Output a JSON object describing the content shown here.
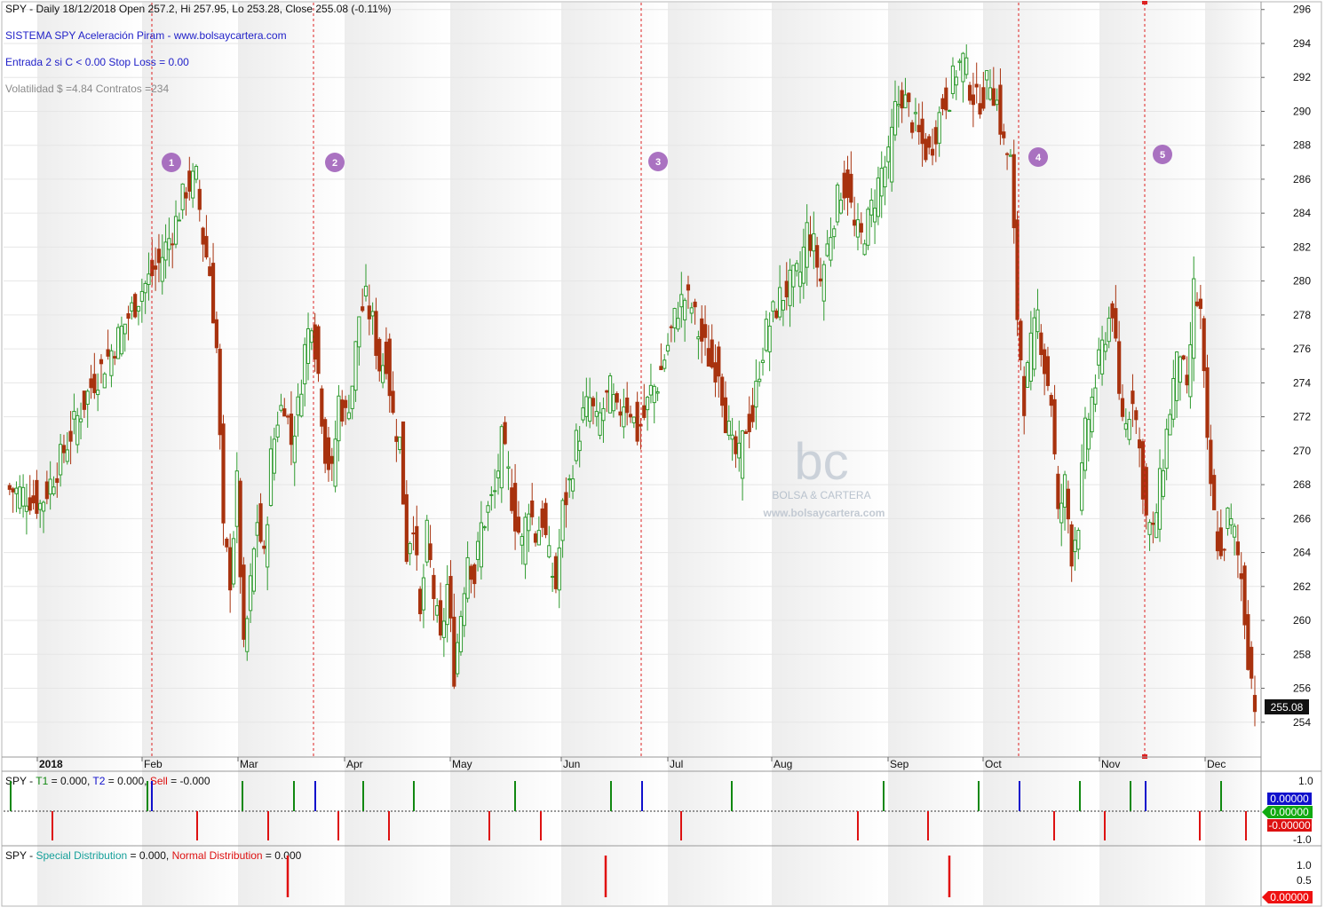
{
  "colors": {
    "up": "#2e9a2e",
    "down": "#a8320e",
    "vline": "#dd2222",
    "marker": "#9b59b6",
    "info_blue": "#1f1fc8",
    "info_gray": "#8a8a8a",
    "dist_red": "#e01010",
    "t1_green": "#118811",
    "t2_blue": "#1010cc",
    "band": "#f1f1f1"
  },
  "header": {
    "line1": "SPY - Daily 18/12/2018  Open 257.2,  Hi 257.95,  Lo 253.28,  Close 255.08 (-0.11%)",
    "line2": "SISTEMA SPY Aceleración Piram  -  www.bolsaycartera.com",
    "line3": "Entrada 2 si C < 0.00  Stop Loss = 0.00",
    "line4": "Volatilidad $ =4.84  Contratos =234"
  },
  "watermark": {
    "logo": "bc",
    "name": "BOLSA & CARTERA",
    "url": "www.bolsaycartera.com"
  },
  "markers": [
    "1",
    "2",
    "3",
    "4",
    "5"
  ],
  "last_price_label": "255.08",
  "panel2": {
    "prefix": "SPY - ",
    "t1": "T1",
    "mid1": " = 0.000, ",
    "t2": "T2",
    "mid2": " = 0.000, ",
    "sell": "Sell",
    "suffix": " = -0.000",
    "ticks": [
      "1.0",
      "-1.0"
    ],
    "badges": [
      "0.00000",
      "0.00000",
      "-0.00000"
    ]
  },
  "panel3": {
    "prefix": "SPY - ",
    "special": "Special Distribution",
    "mid": " = 0.000, ",
    "normal": "Normal Distribution",
    "suffix": " = 0.000",
    "ticks": [
      "1.0",
      "0.5"
    ],
    "badge": "0.00000"
  },
  "chart_data": {
    "type": "candlestick",
    "title": "SPY - Daily 18/12/2018",
    "x_labels": [
      "2018",
      "Feb",
      "Mar",
      "Apr",
      "May",
      "Jun",
      "Jul",
      "Aug",
      "Sep",
      "Oct",
      "Nov",
      "Dec"
    ],
    "y_ticks": [
      254,
      256,
      258,
      260,
      262,
      264,
      266,
      268,
      270,
      272,
      274,
      276,
      278,
      280,
      282,
      284,
      286,
      288,
      290,
      292,
      294,
      296
    ],
    "ylim": [
      252,
      296.3
    ],
    "signal_lines": [
      1,
      2,
      3,
      4,
      5
    ],
    "last": {
      "open": 257.2,
      "high": 257.95,
      "low": 253.28,
      "close": 255.08,
      "change_pct": -0.11
    },
    "ohlc_anchors_close": [
      [
        0,
        267.8
      ],
      [
        5,
        267.5
      ],
      [
        10,
        266.8
      ],
      [
        15,
        269.0
      ],
      [
        20,
        271.5
      ],
      [
        25,
        273.8
      ],
      [
        30,
        275.5
      ],
      [
        35,
        277.5
      ],
      [
        40,
        279.5
      ],
      [
        45,
        281.0
      ],
      [
        50,
        283.5
      ],
      [
        53,
        285.5
      ],
      [
        56,
        286.0
      ],
      [
        58,
        282.5
      ],
      [
        60,
        280.5
      ],
      [
        62,
        276.0
      ],
      [
        64,
        265.0
      ],
      [
        66,
        262.5
      ],
      [
        68,
        268.0
      ],
      [
        70,
        258.0
      ],
      [
        72,
        262.0
      ],
      [
        74,
        266.0
      ],
      [
        76,
        263.5
      ],
      [
        78,
        269.5
      ],
      [
        80,
        272.0
      ],
      [
        82,
        273.0
      ],
      [
        84,
        270.5
      ],
      [
        86,
        272.5
      ],
      [
        88,
        276.0
      ],
      [
        90,
        278.0
      ],
      [
        92,
        274.5
      ],
      [
        94,
        270.0
      ],
      [
        96,
        268.5
      ],
      [
        98,
        273.0
      ],
      [
        100,
        272.0
      ],
      [
        102,
        274.0
      ],
      [
        104,
        278.0
      ],
      [
        106,
        278.8
      ],
      [
        108,
        277.5
      ],
      [
        110,
        275.0
      ],
      [
        112,
        275.5
      ],
      [
        114,
        272.0
      ],
      [
        116,
        270.5
      ],
      [
        118,
        264.0
      ],
      [
        120,
        266.0
      ],
      [
        122,
        260.0
      ],
      [
        124,
        265.0
      ],
      [
        126,
        261.5
      ],
      [
        128,
        258.5
      ],
      [
        130,
        262.0
      ],
      [
        132,
        257.0
      ],
      [
        134,
        260.5
      ],
      [
        136,
        264.0
      ],
      [
        138,
        262.5
      ],
      [
        140,
        265.5
      ],
      [
        142,
        266.5
      ],
      [
        144,
        267.5
      ],
      [
        146,
        270.5
      ],
      [
        148,
        268.5
      ],
      [
        150,
        266.0
      ],
      [
        152,
        264.5
      ],
      [
        154,
        267.0
      ],
      [
        156,
        265.0
      ],
      [
        158,
        266.0
      ],
      [
        160,
        263.5
      ],
      [
        162,
        262.0
      ],
      [
        164,
        266.5
      ],
      [
        166,
        268.0
      ],
      [
        168,
        270.5
      ],
      [
        170,
        272.0
      ],
      [
        172,
        273.0
      ],
      [
        174,
        271.5
      ],
      [
        176,
        272.5
      ],
      [
        178,
        273.5
      ],
      [
        180,
        272.0
      ],
      [
        182,
        273.0
      ],
      [
        184,
        272.5
      ],
      [
        186,
        271.0
      ],
      [
        188,
        272.0
      ],
      [
        190,
        273.5
      ],
      [
        192,
        274.0
      ],
      [
        194,
        275.5
      ],
      [
        196,
        277.0
      ],
      [
        198,
        278.5
      ],
      [
        200,
        279.0
      ],
      [
        202,
        278.5
      ],
      [
        204,
        277.0
      ],
      [
        206,
        276.0
      ],
      [
        208,
        275.0
      ],
      [
        210,
        275.0
      ],
      [
        212,
        272.0
      ],
      [
        214,
        270.0
      ],
      [
        216,
        269.5
      ],
      [
        218,
        271.5
      ],
      [
        220,
        272.0
      ],
      [
        222,
        275.0
      ],
      [
        224,
        277.0
      ],
      [
        226,
        278.0
      ],
      [
        228,
        279.0
      ],
      [
        230,
        279.5
      ],
      [
        232,
        280.0
      ],
      [
        234,
        280.5
      ],
      [
        236,
        283.0
      ],
      [
        238,
        282.0
      ],
      [
        240,
        280.0
      ],
      [
        242,
        282.0
      ],
      [
        244,
        284.0
      ],
      [
        246,
        285.5
      ],
      [
        248,
        285.5
      ],
      [
        250,
        283.0
      ],
      [
        252,
        282.5
      ],
      [
        254,
        283.5
      ],
      [
        256,
        285.0
      ],
      [
        258,
        286.5
      ],
      [
        260,
        287.0
      ],
      [
        262,
        290.0
      ],
      [
        264,
        291.0
      ],
      [
        266,
        290.0
      ],
      [
        268,
        289.0
      ],
      [
        270,
        288.0
      ],
      [
        272,
        287.5
      ],
      [
        274,
        289.0
      ],
      [
        276,
        290.5
      ],
      [
        278,
        291.0
      ],
      [
        280,
        292.5
      ],
      [
        282,
        293.0
      ],
      [
        284,
        291.5
      ],
      [
        286,
        290.5
      ],
      [
        288,
        291.0
      ],
      [
        290,
        292.0
      ],
      [
        292,
        290.5
      ],
      [
        294,
        288.0
      ],
      [
        296,
        287.0
      ],
      [
        298,
        278.0
      ],
      [
        300,
        273.0
      ],
      [
        302,
        276.0
      ],
      [
        304,
        278.0
      ],
      [
        306,
        275.0
      ],
      [
        308,
        273.0
      ],
      [
        310,
        266.0
      ],
      [
        312,
        268.0
      ],
      [
        314,
        264.0
      ],
      [
        316,
        266.0
      ],
      [
        318,
        271.0
      ],
      [
        320,
        273.0
      ],
      [
        322,
        275.0
      ],
      [
        324,
        277.0
      ],
      [
        326,
        278.5
      ],
      [
        328,
        273.0
      ],
      [
        330,
        271.5
      ],
      [
        332,
        273.5
      ],
      [
        334,
        270.0
      ],
      [
        336,
        266.0
      ],
      [
        338,
        265.0
      ],
      [
        340,
        268.0
      ],
      [
        342,
        271.0
      ],
      [
        344,
        274.0
      ],
      [
        346,
        276.0
      ],
      [
        348,
        273.0
      ],
      [
        350,
        279.5
      ],
      [
        352,
        278.0
      ],
      [
        354,
        270.0
      ],
      [
        356,
        266.0
      ],
      [
        358,
        263.5
      ],
      [
        360,
        266.0
      ],
      [
        362,
        265.0
      ],
      [
        364,
        262.5
      ],
      [
        366,
        258.0
      ],
      [
        368,
        255.2
      ]
    ],
    "t1_signals_pane": 1.0,
    "sell_signals_pane": -1.0,
    "distribution_y": [
      0.0,
      1.0
    ]
  }
}
